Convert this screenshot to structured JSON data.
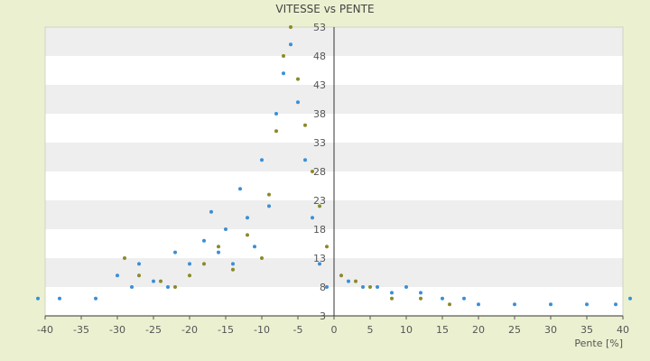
{
  "chart_data": {
    "type": "scatter",
    "title": "VITESSE vs PENTE",
    "xlabel": "Pente [%]",
    "ylabel": "",
    "xlim": [
      -40,
      40
    ],
    "ylim": [
      3,
      53
    ],
    "x_ticks": [
      -40,
      -35,
      -30,
      -25,
      -20,
      -15,
      -10,
      -5,
      0,
      5,
      10,
      15,
      20,
      25,
      30,
      35,
      40
    ],
    "y_ticks": [
      3,
      8,
      13,
      18,
      23,
      28,
      33,
      38,
      43,
      48,
      53
    ],
    "grid": true,
    "legend": "none",
    "colors": {
      "page_background": "#ebf1d0",
      "band_light": "#ffffff",
      "band_dark": "#eeeeee",
      "axis": "#333333",
      "primary_points": "#3a8fd6",
      "secondary_points": "#8a8a2a"
    },
    "series": [
      {
        "values": [
          [
            -41,
            6
          ],
          [
            -38,
            6
          ],
          [
            -33,
            6
          ],
          [
            -30,
            10
          ],
          [
            -28,
            8
          ],
          [
            -27,
            12
          ],
          [
            -25,
            9
          ],
          [
            -23,
            8
          ],
          [
            -22,
            14
          ],
          [
            -20,
            12
          ],
          [
            -18,
            16
          ],
          [
            -17,
            21
          ],
          [
            -16,
            14
          ],
          [
            -15,
            18
          ],
          [
            -14,
            12
          ],
          [
            -13,
            25
          ],
          [
            -12,
            20
          ],
          [
            -11,
            15
          ],
          [
            -10,
            30
          ],
          [
            -9,
            22
          ],
          [
            -8,
            38
          ],
          [
            -7,
            45
          ],
          [
            -6,
            50
          ],
          [
            -5,
            40
          ],
          [
            -4,
            30
          ],
          [
            -3,
            20
          ],
          [
            -2,
            12
          ],
          [
            -1,
            8
          ],
          [
            2,
            9
          ],
          [
            4,
            8
          ],
          [
            6,
            8
          ],
          [
            8,
            7
          ],
          [
            10,
            8
          ],
          [
            12,
            7
          ],
          [
            15,
            6
          ],
          [
            18,
            6
          ],
          [
            20,
            5
          ],
          [
            25,
            5
          ],
          [
            30,
            5
          ],
          [
            35,
            5
          ],
          [
            39,
            5
          ],
          [
            41,
            6
          ]
        ]
      },
      {
        "values": [
          [
            -29,
            13
          ],
          [
            -27,
            10
          ],
          [
            -24,
            9
          ],
          [
            -22,
            8
          ],
          [
            -20,
            10
          ],
          [
            -18,
            12
          ],
          [
            -16,
            15
          ],
          [
            -14,
            11
          ],
          [
            -12,
            17
          ],
          [
            -10,
            13
          ],
          [
            -9,
            24
          ],
          [
            -8,
            35
          ],
          [
            -7,
            48
          ],
          [
            -6,
            53
          ],
          [
            -5,
            44
          ],
          [
            -4,
            36
          ],
          [
            -3,
            28
          ],
          [
            -2,
            22
          ],
          [
            -1,
            15
          ],
          [
            1,
            10
          ],
          [
            3,
            9
          ],
          [
            5,
            8
          ],
          [
            8,
            6
          ],
          [
            12,
            6
          ],
          [
            16,
            5
          ]
        ]
      }
    ]
  }
}
